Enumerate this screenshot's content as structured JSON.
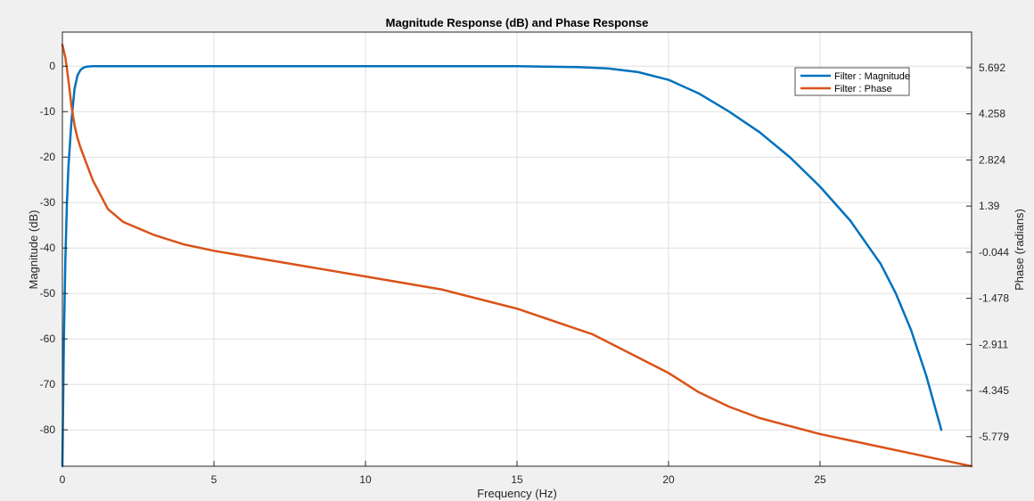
{
  "chart_data": {
    "type": "line",
    "title": "Magnitude Response (dB) and Phase Response",
    "xlabel": "Frequency (Hz)",
    "ylabel_left": "Magnitude (dB)",
    "ylabel_right": "Phase (radians)",
    "xlim": [
      0,
      30
    ],
    "ylim_left": [
      -88,
      7.5
    ],
    "ylim_right": [
      -6.7,
      6.8
    ],
    "x_ticks": [
      0,
      5,
      10,
      15,
      20,
      25
    ],
    "y_left_ticks": [
      0,
      -10,
      -20,
      -30,
      -40,
      -50,
      -60,
      -70,
      -80
    ],
    "y_right_ticks": [
      5.692,
      4.258,
      2.824,
      1.39,
      -0.044,
      -1.478,
      -2.911,
      -4.345,
      -5.779
    ],
    "grid": true,
    "legend_position": "top-right",
    "series": [
      {
        "name": "Filter : Magnitude",
        "axis": "left",
        "color": "#0072BD",
        "x": [
          0,
          0.05,
          0.1,
          0.15,
          0.2,
          0.3,
          0.4,
          0.5,
          0.6,
          0.7,
          0.8,
          1.0,
          2,
          5,
          10,
          15,
          17,
          18,
          19,
          20,
          21,
          22,
          23,
          24,
          25,
          26,
          27,
          27.5,
          28,
          28.5,
          29
        ],
        "values": [
          -88,
          -60,
          -42,
          -30,
          -22,
          -12,
          -5,
          -2,
          -0.8,
          -0.3,
          -0.1,
          0,
          0,
          0,
          0,
          0,
          -0.2,
          -0.5,
          -1.3,
          -3,
          -6,
          -10,
          -14.5,
          -20,
          -26.5,
          -34,
          -43.5,
          -50,
          -58,
          -68,
          -80
        ]
      },
      {
        "name": "Filter : Phase",
        "axis": "right",
        "color": "#D95319",
        "x": [
          0,
          0.1,
          0.2,
          0.3,
          0.4,
          0.5,
          0.6,
          0.8,
          1.0,
          1.5,
          2,
          3,
          4,
          5,
          7.5,
          10,
          12.5,
          15,
          17.5,
          20,
          21,
          22,
          23,
          24,
          25,
          26,
          27,
          28,
          29,
          30
        ],
        "values": [
          6.4,
          6.0,
          5.3,
          4.5,
          3.9,
          3.5,
          3.2,
          2.7,
          2.2,
          1.3,
          0.9,
          0.5,
          0.2,
          0.0,
          -0.4,
          -0.8,
          -1.2,
          -1.8,
          -2.6,
          -3.8,
          -4.4,
          -4.85,
          -5.2,
          -5.45,
          -5.7,
          -5.9,
          -6.1,
          -6.3,
          -6.5,
          -6.7
        ]
      }
    ]
  }
}
